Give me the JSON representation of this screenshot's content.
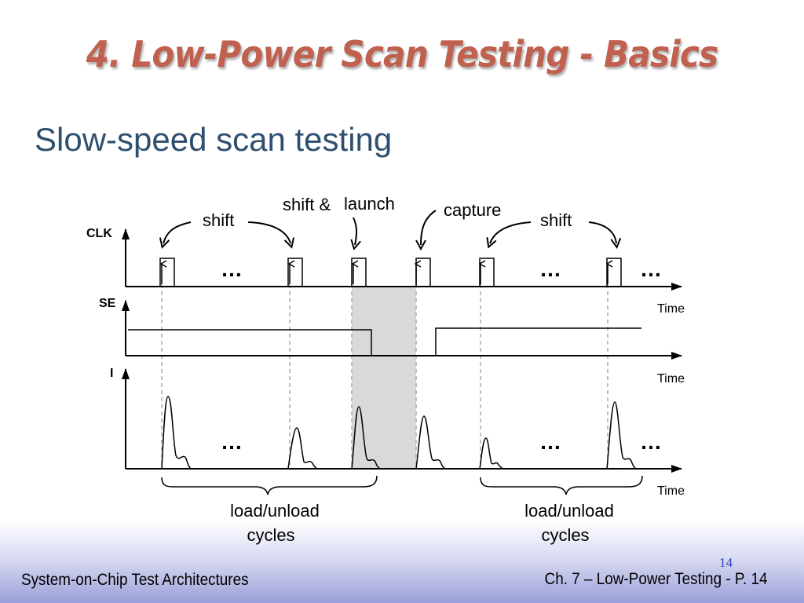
{
  "slide": {
    "title": "4. Low-Power Scan Testing - Basics",
    "subtitle": "Slow-speed scan testing",
    "footer_left": "System-on-Chip Test Architectures",
    "footer_right": "Ch. 7 – Low-Power Testing - P. 14",
    "slide_number": "14",
    "title_color": "#c0614f",
    "subtitle_color": "#2f4f6f"
  },
  "diagram": {
    "signals": {
      "clk": "CLK",
      "se": "SE",
      "current": "I"
    },
    "time_label": "Time",
    "phase_labels": {
      "shift_left": "shift",
      "shift_launch_a": "shift &",
      "shift_launch_b": "launch",
      "capture": "capture",
      "shift_right": "shift"
    },
    "ellipsis": "…",
    "groups": {
      "left": [
        "load/unload",
        "cycles"
      ],
      "right": [
        "load/unload",
        "cycles"
      ]
    },
    "highlight_color": "#d9d9d9"
  }
}
